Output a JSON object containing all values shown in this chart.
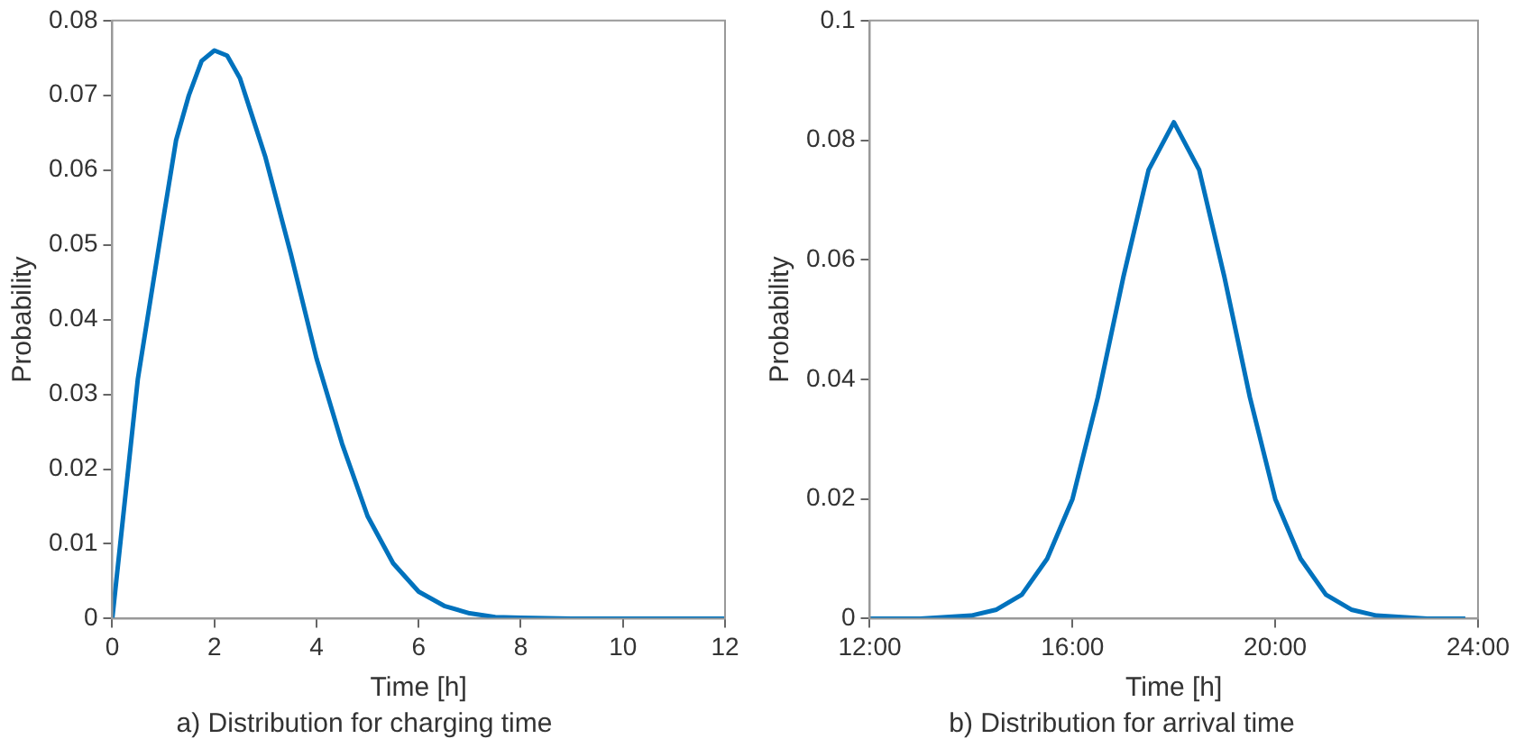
{
  "chart_data": [
    {
      "type": "line",
      "title": "a) Distribution for charging time",
      "xlabel": "Time [h]",
      "ylabel": "Probability",
      "color": "#0072bd",
      "x": [
        0,
        0.5,
        1,
        1.25,
        1.5,
        1.75,
        2,
        2.25,
        2.5,
        2.75,
        3,
        3.5,
        4,
        4.5,
        5,
        5.5,
        6,
        6.5,
        7,
        7.5,
        8,
        9,
        10,
        11,
        12
      ],
      "values": [
        0,
        0.032,
        0.0535,
        0.064,
        0.07,
        0.0746,
        0.076,
        0.0753,
        0.0723,
        0.067,
        0.0617,
        0.0487,
        0.0348,
        0.0234,
        0.0137,
        0.0074,
        0.0036,
        0.0017,
        0.0007,
        0.0002,
        0.0001,
        0,
        0,
        0,
        0
      ],
      "xlim": [
        0,
        12
      ],
      "xticks": [
        0,
        2,
        4,
        6,
        8,
        10,
        12
      ],
      "ylim": [
        0,
        0.08
      ],
      "yticks": [
        0,
        0.01,
        0.02,
        0.03,
        0.04,
        0.05,
        0.06,
        0.07,
        0.08
      ],
      "grid": false,
      "legend": false,
      "marker": "none",
      "line_style": "solid"
    },
    {
      "type": "line",
      "title": "b) Distribution for arrival time",
      "xlabel": "Time [h]",
      "ylabel": "Probability",
      "color": "#0072bd",
      "x": [
        12,
        13,
        14,
        14.5,
        15,
        15.5,
        16,
        16.5,
        17,
        17.5,
        18,
        18.5,
        19,
        19.5,
        20,
        20.5,
        21,
        21.5,
        22,
        23,
        23.75
      ],
      "values": [
        0,
        0,
        0.0005,
        0.0015,
        0.004,
        0.01,
        0.02,
        0.037,
        0.057,
        0.075,
        0.083,
        0.075,
        0.057,
        0.037,
        0.02,
        0.01,
        0.004,
        0.0015,
        0.0005,
        0,
        0
      ],
      "xlim": [
        12,
        24
      ],
      "xticks": [
        {
          "value": 12,
          "label": "12:00"
        },
        {
          "value": 16,
          "label": "16:00"
        },
        {
          "value": 20,
          "label": "20:00"
        },
        {
          "value": 24,
          "label": "24:00"
        }
      ],
      "ylim": [
        0,
        0.1
      ],
      "yticks": [
        0,
        0.02,
        0.04,
        0.06,
        0.08,
        0.1
      ],
      "grid": false,
      "legend": false,
      "marker": "none",
      "line_style": "solid"
    }
  ]
}
